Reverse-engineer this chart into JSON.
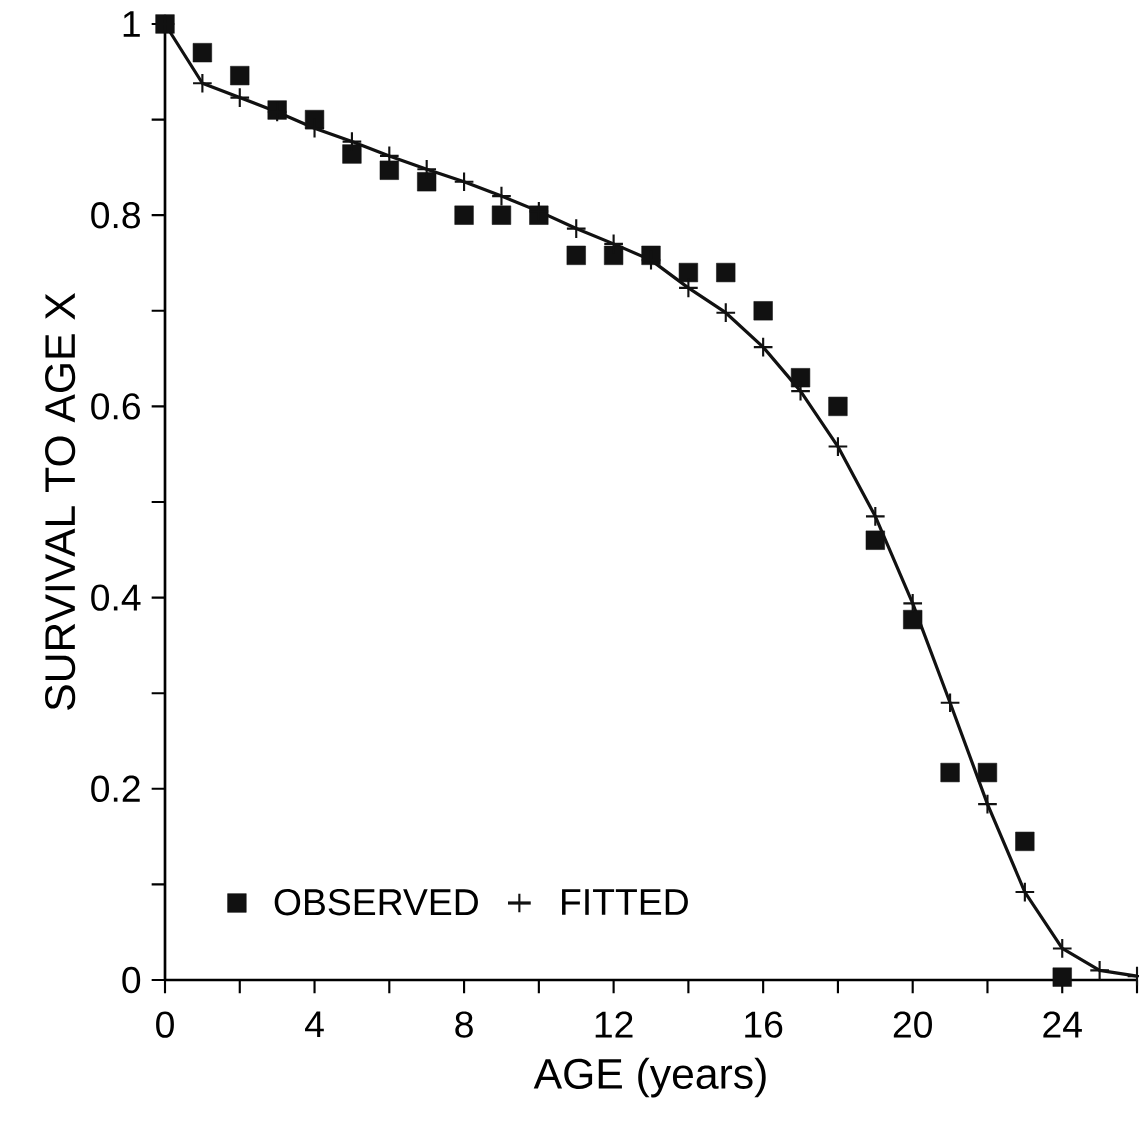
{
  "chart_data": {
    "type": "scatter",
    "xlabel": "AGE (years)",
    "ylabel": "SURVIVAL TO AGE X",
    "xlim": [
      0,
      26
    ],
    "ylim": [
      0,
      1
    ],
    "xticks": [
      {
        "value": 0,
        "label": "0"
      },
      {
        "value": 2,
        "label": null
      },
      {
        "value": 4,
        "label": "4"
      },
      {
        "value": 6,
        "label": null
      },
      {
        "value": 8,
        "label": "8"
      },
      {
        "value": 10,
        "label": null
      },
      {
        "value": 12,
        "label": "12"
      },
      {
        "value": 14,
        "label": null
      },
      {
        "value": 16,
        "label": "16"
      },
      {
        "value": 18,
        "label": null
      },
      {
        "value": 20,
        "label": "20"
      },
      {
        "value": 22,
        "label": null
      },
      {
        "value": 24,
        "label": "24"
      },
      {
        "value": 26,
        "label": null
      }
    ],
    "yticks": [
      {
        "value": 0,
        "label": "0"
      },
      {
        "value": 0.1,
        "label": null
      },
      {
        "value": 0.2,
        "label": "0.2"
      },
      {
        "value": 0.3,
        "label": null
      },
      {
        "value": 0.4,
        "label": "0.4"
      },
      {
        "value": 0.5,
        "label": null
      },
      {
        "value": 0.6,
        "label": "0.6"
      },
      {
        "value": 0.7,
        "label": null
      },
      {
        "value": 0.8,
        "label": "0.8"
      },
      {
        "value": 0.9,
        "label": null
      },
      {
        "value": 1,
        "label": "1"
      }
    ],
    "legend": "bottom left",
    "series": [
      {
        "name": "OBSERVED",
        "marker": "square",
        "color": "#111111",
        "x": [
          0,
          1,
          2,
          3,
          4,
          5,
          6,
          7,
          8,
          9,
          10,
          11,
          12,
          13,
          14,
          15,
          16,
          17,
          18,
          19,
          20,
          21,
          22,
          23,
          24
        ],
        "values": [
          1.0,
          0.97,
          0.946,
          0.91,
          0.9,
          0.864,
          0.847,
          0.835,
          0.8,
          0.8,
          0.8,
          0.758,
          0.758,
          0.758,
          0.74,
          0.74,
          0.7,
          0.63,
          0.6,
          0.46,
          0.377,
          0.217,
          0.217,
          0.145,
          0.003
        ]
      },
      {
        "name": "FITTED",
        "type": "line",
        "marker": "cross",
        "line_style": "solid",
        "color": "#111111",
        "x": [
          0,
          1,
          2,
          3,
          4,
          5,
          6,
          7,
          8,
          9,
          10,
          11,
          12,
          13,
          14,
          15,
          16,
          17,
          18,
          19,
          20,
          21,
          22,
          23,
          24,
          25,
          26
        ],
        "values": [
          1.0,
          0.938,
          0.923,
          0.908,
          0.891,
          0.877,
          0.862,
          0.848,
          0.835,
          0.82,
          0.804,
          0.786,
          0.77,
          0.753,
          0.724,
          0.698,
          0.662,
          0.616,
          0.558,
          0.485,
          0.394,
          0.29,
          0.184,
          0.092,
          0.033,
          0.01,
          0.004
        ]
      }
    ]
  }
}
